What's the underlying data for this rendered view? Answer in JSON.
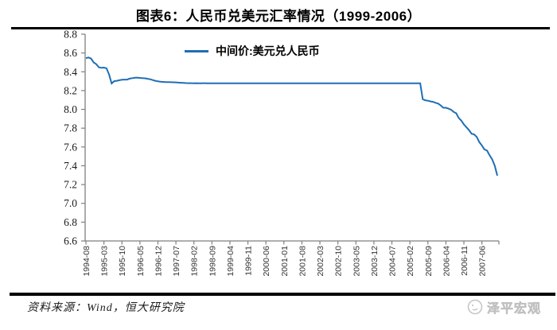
{
  "title": "图表6：人民币兑美元汇率情况（1999-2006）",
  "legend": {
    "label": "中间价:美元兑人民币"
  },
  "footer": {
    "source": "资料来源：Wind，恒大研究院",
    "watermark": "泽平宏观"
  },
  "colors": {
    "line": "#1F6EB5",
    "axis": "#7f7f7f",
    "tick_label": "#333333",
    "y_label": "#1a1a1a",
    "rule": "#000000",
    "watermark": "#c6c6c6"
  },
  "chart_data": {
    "type": "line",
    "title": "图表6：人民币兑美元汇率情况（1999-2006）",
    "xlabel": "",
    "ylabel": "",
    "ylim": [
      6.6,
      8.8
    ],
    "y_ticks": [
      8.8,
      8.6,
      8.4,
      8.2,
      8.0,
      7.8,
      7.6,
      7.4,
      7.2,
      7.0,
      6.8,
      6.6
    ],
    "grid": false,
    "legend_position": "top-center",
    "x_start": "1994-08",
    "x_frequency": "monthly",
    "x_tick_interval_months": 7,
    "x_tick_labels": [
      "1994-08",
      "1995-03",
      "1995-10",
      "1996-05",
      "1996-12",
      "1997-07",
      "1998-02",
      "1998-09",
      "1999-04",
      "1999-11",
      "2000-06",
      "2001-01",
      "2001-08",
      "2002-03",
      "2002-10",
      "2003-05",
      "2003-12",
      "2004-07",
      "2005-02",
      "2005-09",
      "2006-04",
      "2006-11",
      "2007-06"
    ],
    "series": [
      {
        "name": "中间价:美元兑人民币",
        "color": "#1F6EB5",
        "values": [
          8.545,
          8.552,
          8.54,
          8.5,
          8.482,
          8.448,
          8.442,
          8.445,
          8.438,
          8.37,
          8.276,
          8.3,
          8.304,
          8.31,
          8.315,
          8.317,
          8.317,
          8.327,
          8.332,
          8.336,
          8.338,
          8.335,
          8.332,
          8.33,
          8.325,
          8.32,
          8.312,
          8.304,
          8.298,
          8.294,
          8.292,
          8.291,
          8.29,
          8.289,
          8.288,
          8.287,
          8.285,
          8.283,
          8.281,
          8.28,
          8.279,
          8.279,
          8.278,
          8.279,
          8.278,
          8.278,
          8.279,
          8.278,
          8.277,
          8.278,
          8.278,
          8.277,
          8.278,
          8.278,
          8.277,
          8.278,
          8.277,
          8.277,
          8.278,
          8.277,
          8.277,
          8.277,
          8.277,
          8.277,
          8.277,
          8.277,
          8.277,
          8.277,
          8.277,
          8.277,
          8.277,
          8.277,
          8.277,
          8.277,
          8.277,
          8.277,
          8.277,
          8.277,
          8.277,
          8.277,
          8.277,
          8.277,
          8.277,
          8.277,
          8.277,
          8.277,
          8.277,
          8.277,
          8.277,
          8.277,
          8.277,
          8.277,
          8.277,
          8.277,
          8.277,
          8.277,
          8.277,
          8.277,
          8.277,
          8.277,
          8.277,
          8.277,
          8.277,
          8.277,
          8.277,
          8.277,
          8.277,
          8.277,
          8.277,
          8.277,
          8.277,
          8.277,
          8.277,
          8.277,
          8.277,
          8.277,
          8.277,
          8.277,
          8.277,
          8.277,
          8.277,
          8.277,
          8.277,
          8.277,
          8.277,
          8.277,
          8.277,
          8.277,
          8.277,
          8.277,
          8.277,
          8.108,
          8.097,
          8.092,
          8.085,
          8.08,
          8.07,
          8.061,
          8.042,
          8.017,
          8.017,
          8.008,
          7.996,
          7.973,
          7.959,
          7.909,
          7.879,
          7.84,
          7.809,
          7.778,
          7.741,
          7.734,
          7.706,
          7.651,
          7.616,
          7.574,
          7.561,
          7.511,
          7.469,
          7.4,
          7.295
        ]
      }
    ]
  }
}
